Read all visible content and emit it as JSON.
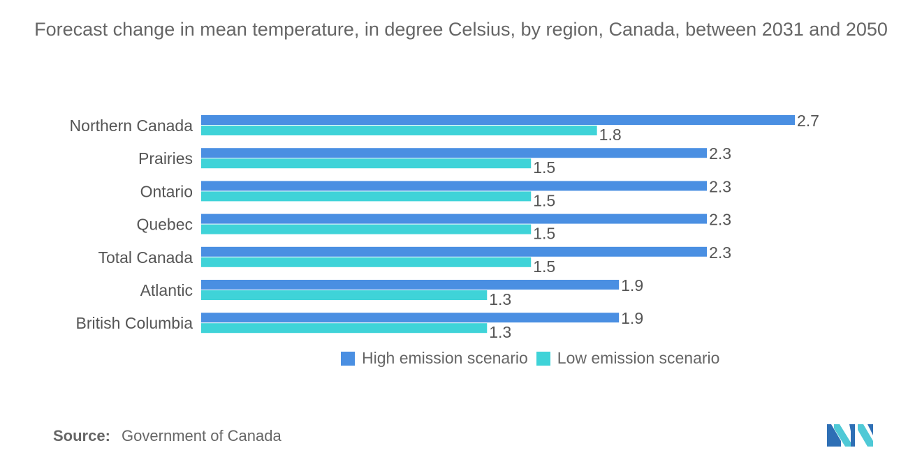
{
  "chart_data": {
    "type": "bar",
    "orientation": "horizontal",
    "title": "Forecast change in mean temperature, in degree Celsius, by region, Canada, between 2031 and 2050",
    "categories": [
      "Northern Canada",
      "Prairies",
      "Ontario",
      "Quebec",
      "Total Canada",
      "Atlantic",
      "British Columbia"
    ],
    "series": [
      {
        "name": "High emission scenario",
        "color": "#4a8fe2",
        "values": [
          2.7,
          2.3,
          2.3,
          2.3,
          2.3,
          1.9,
          1.9
        ],
        "labels": [
          "2.7",
          "2.3",
          "2.3",
          "2.3",
          "2.3",
          "1.9",
          "1.9"
        ]
      },
      {
        "name": "Low emission scenario",
        "color": "#3fd3d8",
        "values": [
          1.8,
          1.5,
          1.5,
          1.5,
          1.5,
          1.3,
          1.3
        ],
        "labels": [
          "1.8",
          "1.5",
          "1.5",
          "1.5",
          "1.5",
          "1.3",
          "1.3"
        ]
      }
    ],
    "xlim": [
      0,
      2.7
    ],
    "grid": false,
    "legend_position": "bottom"
  },
  "title": "Forecast change in mean temperature, in degree Celsius, by region, Canada, between 2031 and 2050",
  "legend": {
    "high_label": "High emission scenario",
    "low_label": "Low emission scenario"
  },
  "source": {
    "label": "Source:",
    "text": "Government of Canada"
  },
  "logo": {
    "icon": "mordor-intelligence-logo-icon"
  }
}
